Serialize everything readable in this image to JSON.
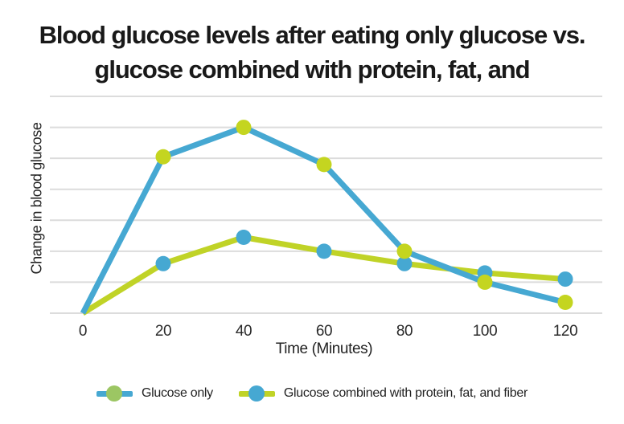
{
  "chart_data": {
    "type": "line",
    "title": "Blood glucose levels after eating only glucose vs. glucose combined with protein, fat, and",
    "title_lines": [
      "Blood glucose levels after eating only glucose vs.",
      "glucose combined with protein, fat, and"
    ],
    "xlabel": "Time (Minutes)",
    "ylabel": "Change in blood glucose",
    "x": [
      0,
      20,
      40,
      60,
      80,
      100,
      120
    ],
    "x_tick_labels": [
      "0",
      "20",
      "40",
      "60",
      "80",
      "100",
      "120"
    ],
    "ylim": [
      0,
      7
    ],
    "y_axis_numbers_shown": false,
    "grid": {
      "horizontal_lines": 8,
      "color": "#dcdcdc",
      "vertical_lines": 0
    },
    "series": [
      {
        "name": "Glucose combined with protein, fat, and fiber",
        "values": [
          0,
          1.6,
          2.45,
          2.0,
          1.6,
          1.3,
          1.1
        ],
        "line_color": "#c0d327",
        "marker_color": "#46a8d2"
      },
      {
        "name": "Glucose only",
        "values": [
          0,
          5.05,
          6.0,
          4.8,
          2.0,
          1.0,
          0.35
        ],
        "line_color": "#46a8d2",
        "marker_color": "#c4d520"
      }
    ],
    "legend": {
      "position": "bottom",
      "items": [
        {
          "label": "Glucose only",
          "line_color": "#46a8d2",
          "dot_color": "#9cc663"
        },
        {
          "label": "Glucose combined with protein, fat, and fiber",
          "line_color": "#c0d327",
          "dot_color": "#46a8d2"
        }
      ]
    }
  }
}
